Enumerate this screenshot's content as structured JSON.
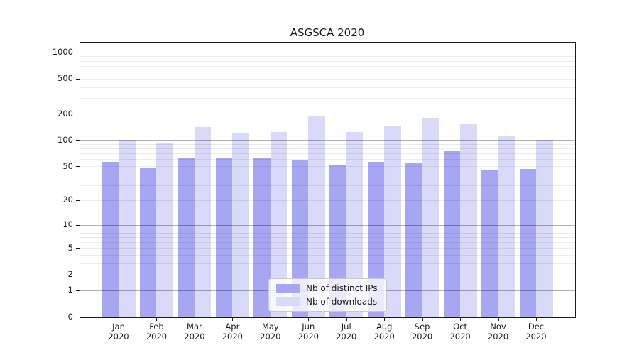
{
  "chart_data": {
    "type": "bar",
    "title": "ASGSCA 2020",
    "categories": [
      "Jan 2020",
      "Feb 2020",
      "Mar 2020",
      "Apr 2020",
      "May 2020",
      "Jun 2020",
      "Jul 2020",
      "Aug 2020",
      "Sep 2020",
      "Oct 2020",
      "Nov 2020",
      "Dec 2020"
    ],
    "series": [
      {
        "name": "Nb of distinct IPs",
        "color": "#a6a6f3",
        "values": [
          56,
          47,
          62,
          61,
          63,
          58,
          52,
          56,
          54,
          74,
          45,
          46
        ]
      },
      {
        "name": "Nb of downloads",
        "color": "#d9d9f9",
        "values": [
          101,
          93,
          140,
          121,
          123,
          191,
          123,
          146,
          180,
          150,
          112,
          100
        ]
      }
    ],
    "y_ticks": [
      0,
      1,
      2,
      5,
      10,
      20,
      50,
      100,
      200,
      500,
      1000
    ],
    "y_scale": "log10(value+1)",
    "ylim": [
      0,
      1000
    ],
    "xlabel": "",
    "ylabel": "",
    "grid": "horizontal, minor log lines light, decade lines dark",
    "legend_position": "inside bottom-center"
  }
}
